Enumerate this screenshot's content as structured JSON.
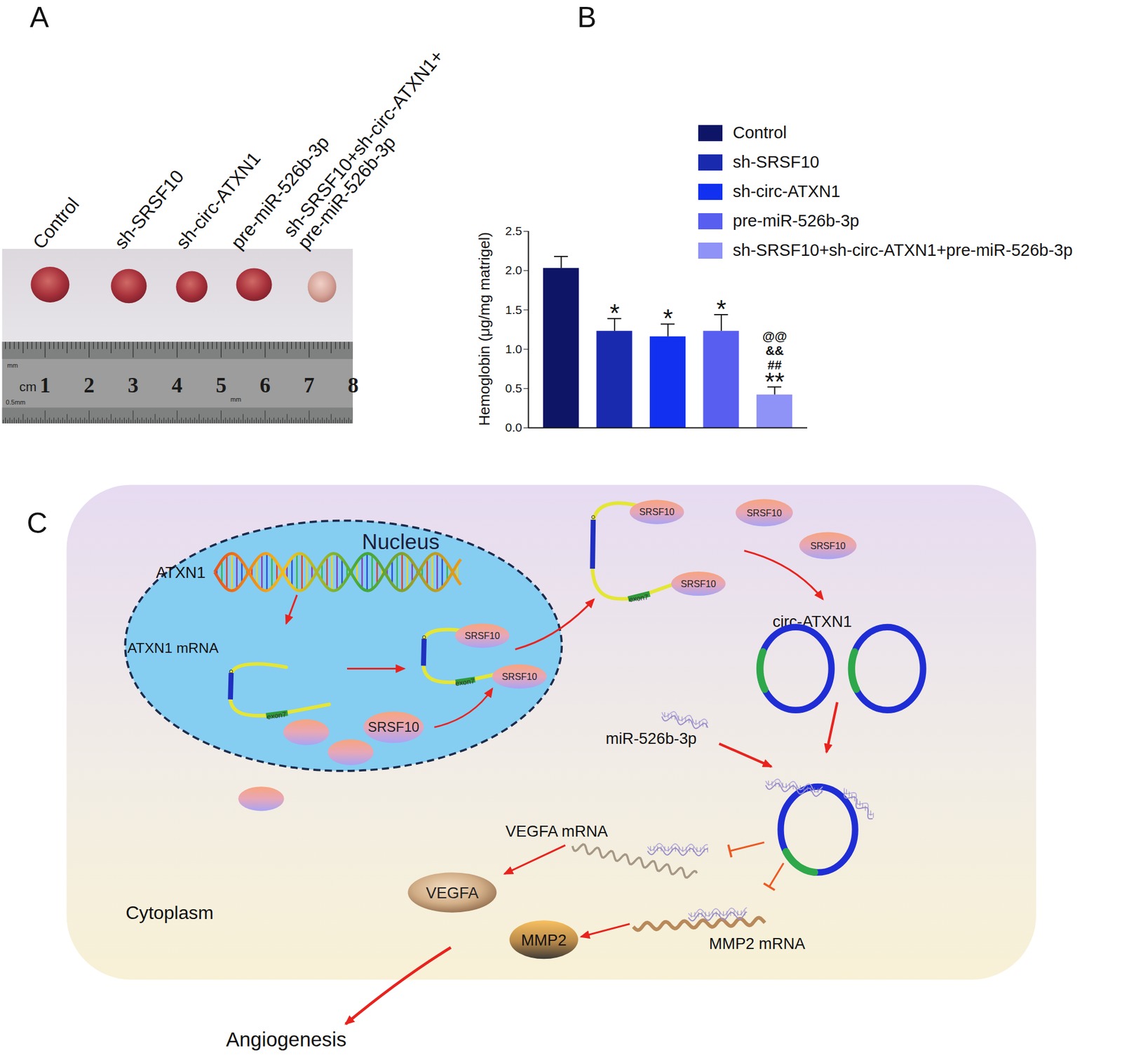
{
  "photo": {
    "label": "A",
    "groups": [
      [
        "Control"
      ],
      [
        "sh-SRSF10"
      ],
      [
        "sh-circ-ATXN1"
      ],
      [
        "pre-miR-526b-3p"
      ],
      [
        "sh-SRSF10+sh-circ-ATXN1+",
        "pre-miR-526b-3p"
      ]
    ],
    "ruler": {
      "unit": "cm",
      "numbers": [
        1,
        2,
        3,
        4,
        5,
        6,
        7,
        8
      ],
      "marks": [
        "mm",
        "0.5mm",
        "mm"
      ]
    }
  },
  "chart_label": "B",
  "chart_data": {
    "type": "bar",
    "categories": [
      "Control",
      "sh-SRSF10",
      "sh-circ-ATXN1",
      "pre-miR-526b-3p",
      "sh-SRSF10+sh-circ-ATXN1+pre-miR-526b-3p"
    ],
    "values": [
      2.03,
      1.23,
      1.16,
      1.23,
      0.42
    ],
    "errors": [
      0.15,
      0.16,
      0.16,
      0.21,
      0.1
    ],
    "colors": [
      "#0e1566",
      "#1a2aaf",
      "#1230f0",
      "#585ef0",
      "#8f92f6"
    ],
    "annotations": [
      null,
      [
        "*"
      ],
      [
        "*"
      ],
      [
        "*"
      ],
      [
        "@@",
        "&&",
        "##",
        "**"
      ]
    ],
    "ylabel": "Hemoglobin (μg/mg matrigel)",
    "ylim": [
      0,
      2.5
    ],
    "yticks": [
      {
        "value": 0,
        "label": "0.0"
      },
      {
        "value": 0.5,
        "label": "0.5"
      },
      {
        "value": 1,
        "label": "1.0"
      },
      {
        "value": 1.5,
        "label": "1.5"
      },
      {
        "value": 2,
        "label": "2.0"
      },
      {
        "value": 2.5,
        "label": "2.5"
      }
    ],
    "tick_labels": "y",
    "legend": "top-right"
  },
  "diagram": {
    "label": "C",
    "gene": "ATXN1",
    "compartments": {
      "nucleus": "Nucleus",
      "cytoplasm": "Cytoplasm"
    },
    "transcript": "ATXN1 mRNA",
    "splicing_factor": "SRSF10",
    "exon": "exon7",
    "circrna": "circ-ATXN1",
    "mirna": "miR-526b-3p",
    "targets": [
      {
        "mrna": "VEGFA mRNA",
        "protein": "VEGFA"
      },
      {
        "mrna": "MMP2 mRNA",
        "protein": "MMP2"
      }
    ],
    "outcome": "Angiogenesis"
  }
}
